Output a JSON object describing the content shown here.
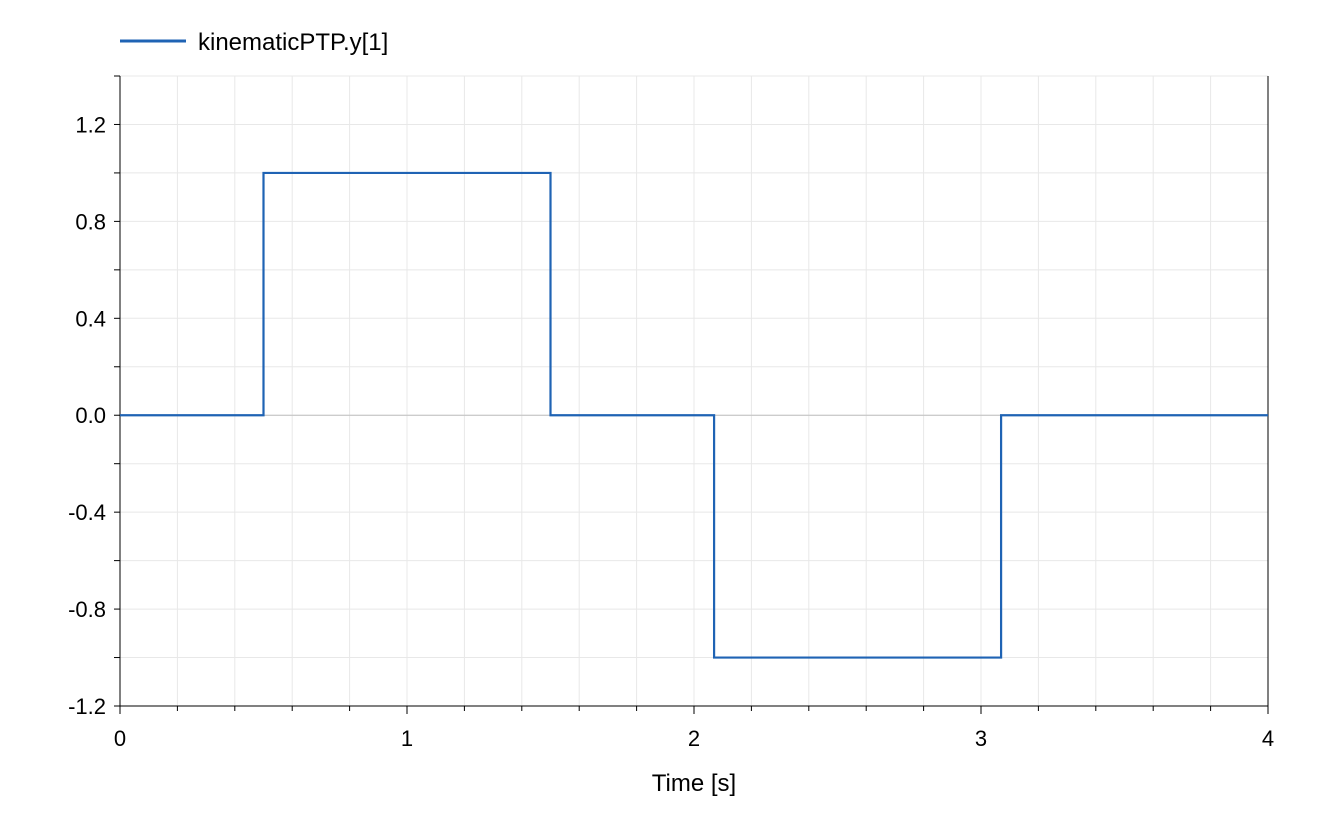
{
  "chart_data": {
    "type": "line",
    "xlabel": "Time [s]",
    "ylabel": "",
    "xlim": [
      0,
      4
    ],
    "ylim": [
      -1.2,
      1.4
    ],
    "xticks": [
      0,
      1,
      2,
      3,
      4
    ],
    "xtick_labels": [
      "0",
      "1",
      "2",
      "3",
      "4"
    ],
    "yticks": [
      -1.2,
      -0.8,
      -0.4,
      0.0,
      0.4,
      0.8,
      1.2
    ],
    "ytick_labels": [
      "-1.2",
      "-0.8",
      "-0.4",
      "0.0",
      "0.4",
      "0.8",
      "1.2"
    ],
    "grid": true,
    "legend_position": "top-left",
    "series": [
      {
        "name": "kinematicPTP.y[1]",
        "color": "#1f63b4",
        "x": [
          0,
          0.5,
          0.5,
          1.5,
          1.5,
          2.07,
          2.07,
          3.07,
          3.07,
          4
        ],
        "y": [
          0,
          0,
          1,
          1,
          0,
          0,
          -1,
          -1,
          0,
          0
        ]
      }
    ]
  }
}
